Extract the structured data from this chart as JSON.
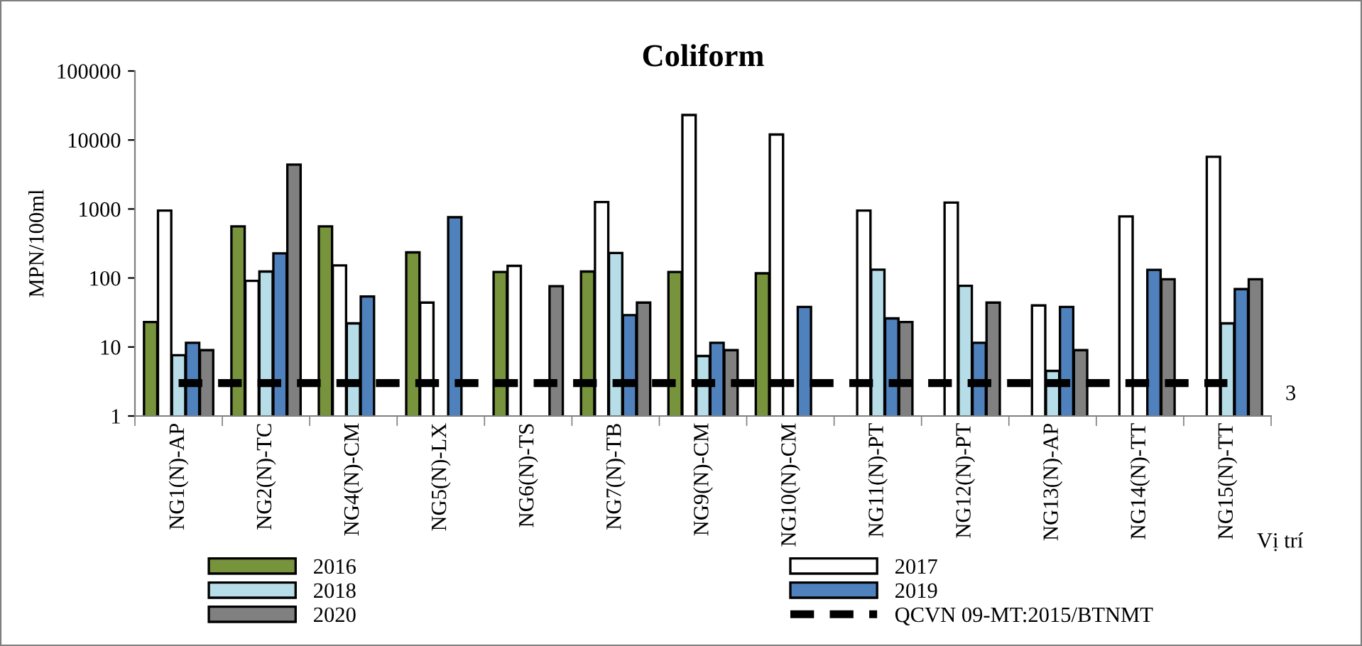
{
  "chart_data": {
    "type": "bar",
    "title": "Coliform",
    "ylabel": "MPN/100ml",
    "xlabel": "Vị trí",
    "categories": [
      "NG1(N)-AP",
      "NG2(N)-TC",
      "NG4(N)-CM",
      "NG5(N)-LX",
      "NG6(N)-TS",
      "NG7(N)-TB",
      "NG9(N)-CM",
      "NG10(N)-CM",
      "NG11(N)-PT",
      "NG12(N)-PT",
      "NG13(N)-AP",
      "NG14(N)-TT",
      "NG15(N)-TT"
    ],
    "series": [
      {
        "name": "2016",
        "color": "#77933c",
        "values": [
          23,
          560,
          560,
          235,
          122,
          124,
          122,
          117,
          null,
          null,
          null,
          null,
          null
        ]
      },
      {
        "name": "2017",
        "color": "#ffffff",
        "values": [
          950,
          91,
          152,
          44,
          150,
          1260,
          23000,
          12000,
          950,
          1240,
          40,
          780,
          5700
        ]
      },
      {
        "name": "2018",
        "color": "#b7dee8",
        "values": [
          7.6,
          124,
          22,
          null,
          null,
          230,
          7.4,
          null,
          132,
          77,
          4.5,
          null,
          22
        ]
      },
      {
        "name": "2019",
        "color": "#4f81bd",
        "values": [
          11.5,
          228,
          54,
          760,
          null,
          29,
          11.5,
          38,
          26,
          11.5,
          38,
          131,
          69
        ]
      },
      {
        "name": "2020",
        "color": "#808080",
        "values": [
          9,
          4400,
          null,
          null,
          76,
          44,
          9,
          null,
          23,
          44,
          9,
          96,
          96
        ]
      },
      {
        "name": "QCVN 09-MT:2015/BTNMT",
        "type": "line",
        "line_style": "dashed",
        "color": "#000000",
        "values": [
          3,
          3,
          3,
          3,
          3,
          3,
          3,
          3,
          3,
          3,
          3,
          3,
          3
        ]
      }
    ],
    "log": "y",
    "ylim": [
      1,
      100000
    ],
    "yticks": [
      1,
      10,
      100,
      1000,
      10000,
      100000
    ],
    "annotations": [
      "3"
    ],
    "grid": false,
    "legend": "bottom"
  }
}
